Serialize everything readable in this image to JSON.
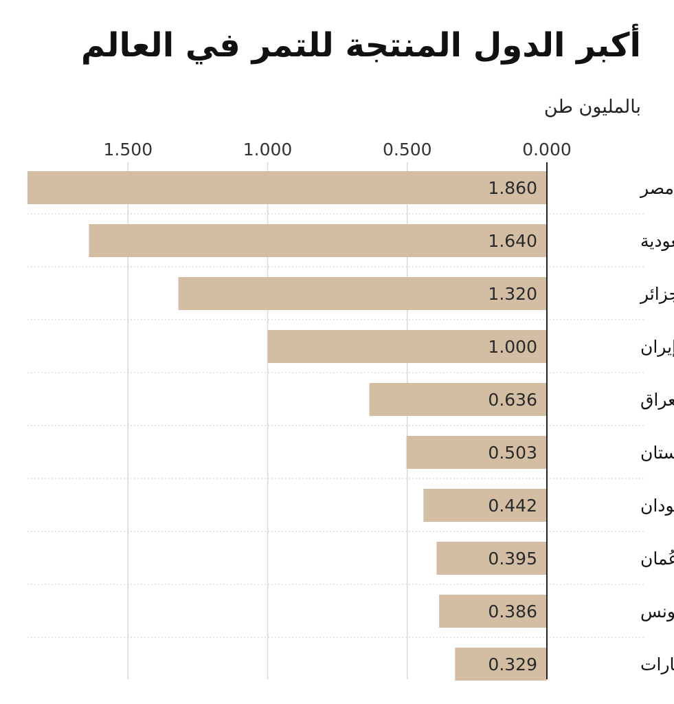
{
  "chart_data": {
    "type": "bar",
    "orientation": "horizontal",
    "title": "أكبر الدول المنتجة للتمر في العالم",
    "subtitle": "بالمليون طن",
    "categories": [
      "مصر",
      "السعودية",
      "الجزائر",
      "إيران",
      "العراق",
      "باكستان",
      "السودان",
      "عُمان",
      "تونس",
      "الإمارات"
    ],
    "values": [
      1.86,
      1.64,
      1.32,
      1.0,
      0.636,
      0.503,
      0.442,
      0.395,
      0.386,
      0.329
    ],
    "value_labels": [
      "1.860",
      "1.640",
      "1.320",
      "1.000",
      "0.636",
      "0.503",
      "0.442",
      "0.395",
      "0.386",
      "0.329"
    ],
    "ticks": [
      0,
      0.5,
      1.0,
      1.5
    ],
    "tick_labels": [
      "0.000",
      "0.500",
      "1.000",
      "1.500"
    ],
    "xlim": [
      0,
      1.86
    ],
    "x_axis_reversed": true,
    "grid": true,
    "bar_color": "#d3bda3",
    "grid_color": "#d9d9d9",
    "axis_color": "#222222"
  }
}
